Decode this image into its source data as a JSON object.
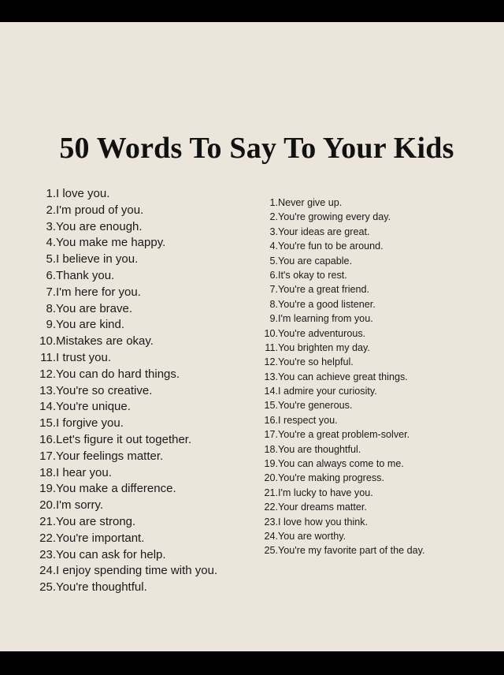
{
  "title": "50 Words To Say To Your Kids",
  "left_list": [
    "I love you.",
    "I'm proud of you.",
    "You are enough.",
    "You make me happy.",
    "I believe in you.",
    "Thank you.",
    "I'm here for you.",
    "You are brave.",
    "You are kind.",
    "Mistakes are okay.",
    "I trust you.",
    "You can do hard things.",
    "You're so creative.",
    "You're unique.",
    "I forgive you.",
    "Let's figure it out together.",
    "Your feelings matter.",
    "I hear you.",
    "You make a difference.",
    "I'm sorry.",
    "You are strong.",
    "You're important.",
    "You can ask for help.",
    "I enjoy spending time with you.",
    "You're thoughtful."
  ],
  "right_list": [
    "Never give up.",
    "You're growing every day.",
    "Your ideas are great.",
    "You're fun to be around.",
    "You are capable.",
    "It's okay to rest.",
    "You're a great friend.",
    "You're a good listener.",
    "I'm learning from you.",
    "You're adventurous.",
    "You brighten my day.",
    "You're so helpful.",
    "You can achieve great things.",
    "I admire your curiosity.",
    "You're generous.",
    "I respect you.",
    "You're a great problem-solver.",
    "You are thoughtful.",
    "You can always come to me.",
    "You're making progress.",
    "I'm lucky to have you.",
    "Your dreams matter.",
    "I love how you think.",
    "You are worthy.",
    "You're my favorite part of the day."
  ]
}
